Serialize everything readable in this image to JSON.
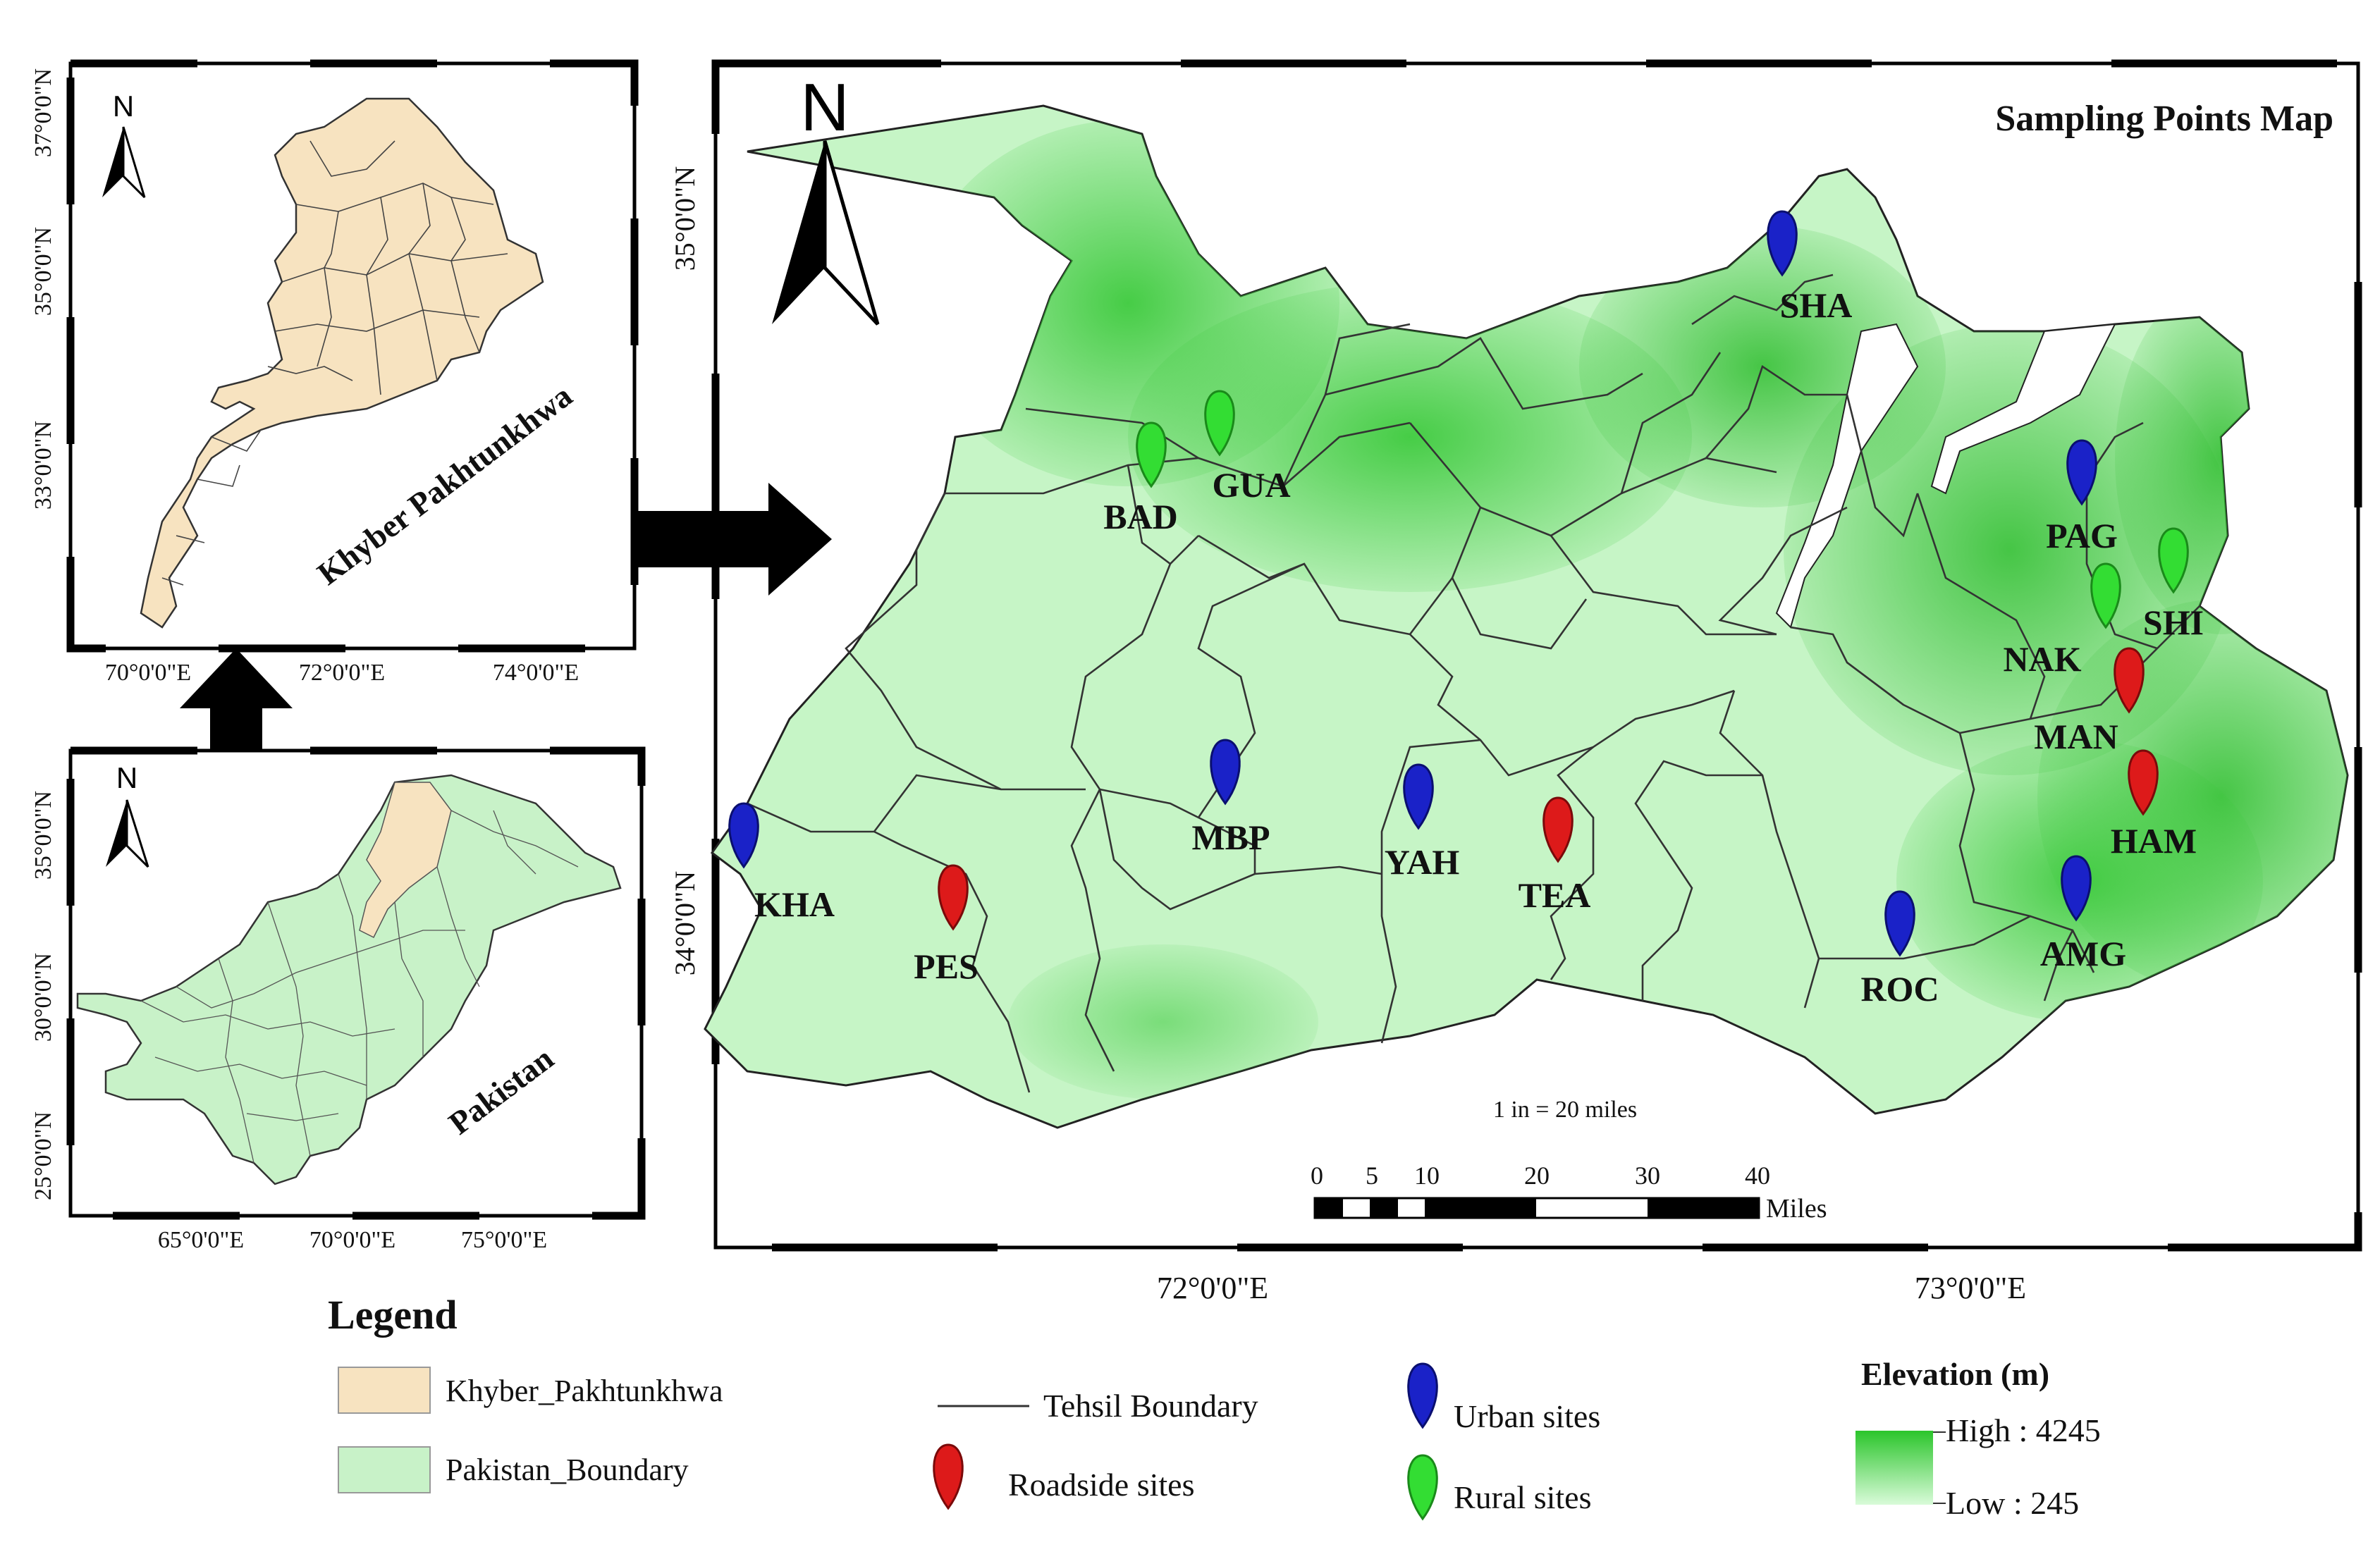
{
  "main_map": {
    "title": "Sampling Points Map",
    "north_label": "N",
    "lat_labels": [
      "35°0'0\"N",
      "34°0'0\"N"
    ],
    "lon_labels": [
      "72°0'0\"E",
      "73°0'0\"E"
    ],
    "scale_text": "1 in = 20 miles",
    "scale_ticks": [
      "0",
      "5",
      "10",
      "20",
      "30",
      "40"
    ],
    "scale_unit": "Miles"
  },
  "sites": [
    {
      "code": "SHA",
      "type": "urban"
    },
    {
      "code": "GUA",
      "type": "rural"
    },
    {
      "code": "BAD",
      "type": "rural"
    },
    {
      "code": "PAG",
      "type": "urban"
    },
    {
      "code": "SHI",
      "type": "rural"
    },
    {
      "code": "NAK",
      "type": "rural"
    },
    {
      "code": "MAN",
      "type": "roadside"
    },
    {
      "code": "HAM",
      "type": "roadside"
    },
    {
      "code": "MBP",
      "type": "urban"
    },
    {
      "code": "YAH",
      "type": "urban"
    },
    {
      "code": "TEA",
      "type": "roadside"
    },
    {
      "code": "KHA",
      "type": "urban"
    },
    {
      "code": "PES",
      "type": "roadside"
    },
    {
      "code": "ROC",
      "type": "urban"
    },
    {
      "code": "AMG",
      "type": "urban"
    }
  ],
  "inset_kp": {
    "label": "Khyber Pakhtunkhwa",
    "north_label": "N",
    "lat_labels": [
      "37°0'0\"N",
      "35°0'0\"N",
      "33°0'0\"N"
    ],
    "lon_labels": [
      "70°0'0\"E",
      "72°0'0\"E",
      "74°0'0\"E"
    ]
  },
  "inset_pk": {
    "label": "Pakistan",
    "north_label": "N",
    "lat_labels": [
      "35°0'0\"N",
      "30°0'0\"N",
      "25°0'0\"N"
    ],
    "lon_labels": [
      "65°0'0\"E",
      "70°0'0\"E",
      "75°0'0\"E"
    ]
  },
  "legend": {
    "title": "Legend",
    "kp_label": "Khyber_Pakhtunkhwa",
    "pk_label": "Pakistan_Boundary",
    "tehsil_label": "Tehsil Boundary",
    "roadside_label": "Roadside sites",
    "urban_label": "Urban sites",
    "rural_label": "Rural sites",
    "elevation_title": "Elevation (m)",
    "high_label": "High : 4245",
    "low_label": "Low : 245"
  },
  "colors": {
    "urban": "#1a22c8",
    "rural": "#33dd33",
    "roadside": "#dd1a1a",
    "kp_fill": "#f7e3c0",
    "pk_fill": "#c8f2c8",
    "elev_high": "#2bc52b",
    "elev_low": "#d9fbd9"
  }
}
